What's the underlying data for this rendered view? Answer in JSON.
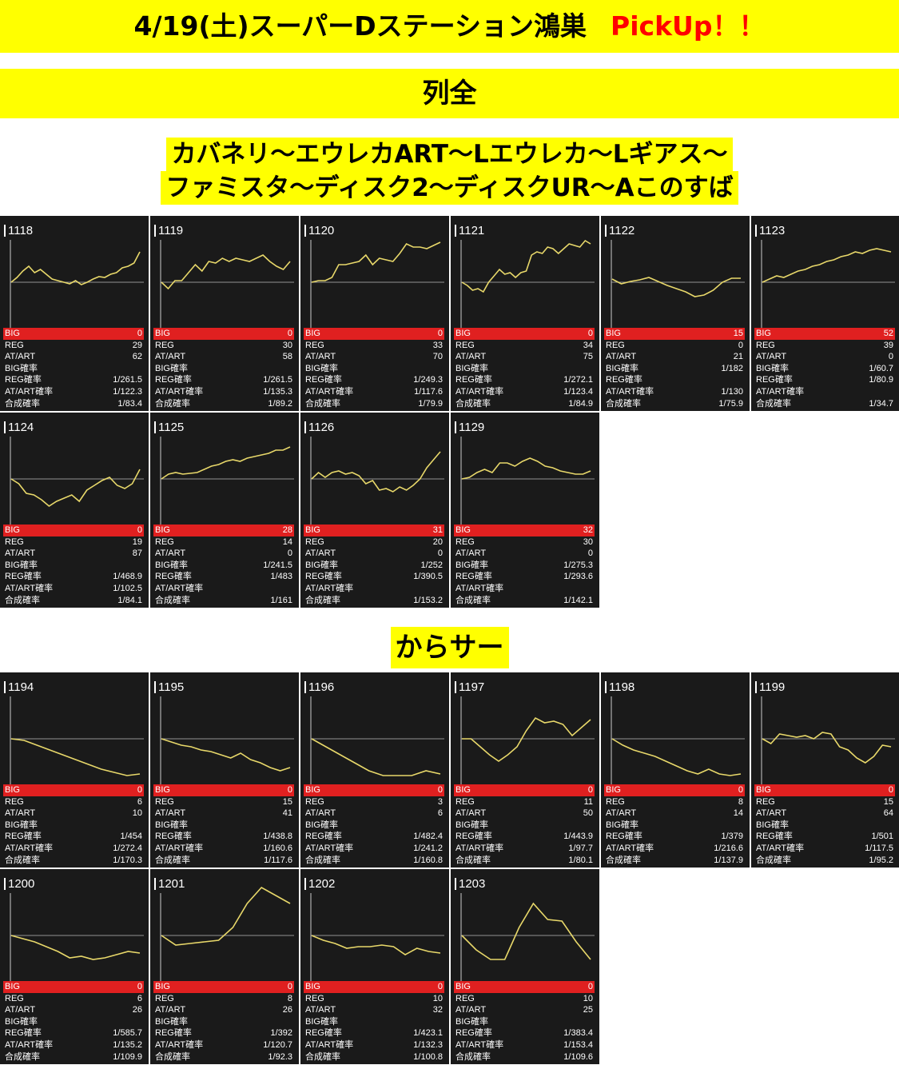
{
  "header": {
    "title": "4/19(土)スーパーDステーション鴻巣",
    "pickup": "PickUp！！"
  },
  "row_banner": "列全",
  "section1": {
    "title_line1": "カバネリ〜エウレカART〜Lエウレカ〜Lギアス〜",
    "title_line2": "ファミスタ〜ディスク2〜ディスクUR〜Aこのすば"
  },
  "section2": {
    "title": "からサー"
  },
  "stat_labels": {
    "big": "BIG",
    "reg": "REG",
    "at": "AT/ART",
    "big_rate": "BIG確率",
    "reg_rate": "REG確率",
    "at_rate": "AT/ART確率",
    "total_rate": "合成確率"
  },
  "colors": {
    "banner": "#ffff00",
    "pickup": "#ff0000",
    "card_bg": "#1a1a1a",
    "big_bar": "#e02020",
    "graph_line": "#e8d86a"
  },
  "machines": [
    {
      "num": "1118",
      "big": "0",
      "reg": "29",
      "at": "62",
      "big_rate": "",
      "reg_rate": "1/261.5",
      "at_rate": "1/122.3",
      "total_rate": "1/83.4",
      "graph": [
        0,
        6,
        14,
        20,
        12,
        16,
        10,
        4,
        2,
        0,
        -2,
        2,
        -3,
        0,
        4,
        7,
        6,
        10,
        12,
        18,
        20,
        24,
        38
      ]
    },
    {
      "num": "1119",
      "big": "0",
      "reg": "30",
      "at": "58",
      "big_rate": "",
      "reg_rate": "1/261.5",
      "at_rate": "1/135.3",
      "total_rate": "1/89.2",
      "graph": [
        0,
        -8,
        2,
        2,
        12,
        22,
        14,
        26,
        24,
        30,
        26,
        30,
        28,
        26,
        30,
        34,
        26,
        20,
        16,
        26
      ]
    },
    {
      "num": "1120",
      "big": "0",
      "reg": "33",
      "at": "70",
      "big_rate": "",
      "reg_rate": "1/249.3",
      "at_rate": "1/117.6",
      "total_rate": "1/79.9",
      "graph": [
        0,
        2,
        2,
        6,
        22,
        22,
        24,
        26,
        34,
        22,
        30,
        28,
        26,
        36,
        48,
        44,
        44,
        42,
        46,
        50
      ]
    },
    {
      "num": "1121",
      "big": "0",
      "reg": "34",
      "at": "75",
      "big_rate": "",
      "reg_rate": "1/272.1",
      "at_rate": "1/123.4",
      "total_rate": "1/84.9",
      "graph": [
        0,
        -4,
        -10,
        -8,
        -12,
        0,
        8,
        16,
        10,
        12,
        6,
        12,
        14,
        34,
        38,
        36,
        44,
        42,
        36,
        42,
        48,
        46,
        44,
        52,
        48
      ]
    },
    {
      "num": "1122",
      "big": "15",
      "reg": "0",
      "at": "21",
      "big_rate": "1/182",
      "reg_rate": "",
      "at_rate": "1/130",
      "total_rate": "1/75.9",
      "graph": [
        4,
        -2,
        1,
        3,
        6,
        1,
        -4,
        -8,
        -12,
        -18,
        -16,
        -10,
        0,
        5,
        5
      ]
    },
    {
      "num": "1123",
      "big": "52",
      "reg": "39",
      "at": "0",
      "big_rate": "1/60.7",
      "reg_rate": "1/80.9",
      "at_rate": "",
      "total_rate": "1/34.7",
      "graph": [
        0,
        4,
        8,
        6,
        10,
        14,
        16,
        20,
        22,
        26,
        28,
        32,
        34,
        38,
        36,
        40,
        42,
        40,
        38
      ]
    },
    {
      "num": "1124",
      "big": "0",
      "reg": "19",
      "at": "87",
      "big_rate": "",
      "reg_rate": "1/468.9",
      "at_rate": "1/102.5",
      "total_rate": "1/84.1",
      "graph": [
        0,
        -6,
        -18,
        -20,
        -26,
        -34,
        -28,
        -24,
        -20,
        -28,
        -14,
        -8,
        -2,
        2,
        -8,
        -12,
        -6,
        12
      ]
    },
    {
      "num": "1125",
      "big": "28",
      "reg": "14",
      "at": "0",
      "big_rate": "1/241.5",
      "reg_rate": "1/483",
      "at_rate": "",
      "total_rate": "1/161",
      "graph": [
        0,
        6,
        8,
        6,
        7,
        8,
        12,
        16,
        18,
        22,
        24,
        22,
        26,
        28,
        30,
        32,
        36,
        36,
        40
      ]
    },
    {
      "num": "1126",
      "big": "31",
      "reg": "20",
      "at": "0",
      "big_rate": "1/252",
      "reg_rate": "1/390.5",
      "at_rate": "",
      "total_rate": "1/153.2",
      "graph": [
        0,
        8,
        2,
        8,
        10,
        6,
        8,
        4,
        -6,
        -2,
        -14,
        -12,
        -16,
        -10,
        -14,
        -8,
        0,
        14,
        24,
        34
      ]
    },
    {
      "num": "1129",
      "big": "32",
      "reg": "30",
      "at": "0",
      "big_rate": "1/275.3",
      "reg_rate": "1/293.6",
      "at_rate": "",
      "total_rate": "1/142.1",
      "graph": [
        0,
        2,
        8,
        12,
        8,
        20,
        20,
        16,
        22,
        26,
        22,
        16,
        14,
        10,
        8,
        6,
        6,
        10
      ]
    },
    {
      "num": "1194",
      "big": "0",
      "reg": "6",
      "at": "10",
      "big_rate": "",
      "reg_rate": "1/454",
      "at_rate": "1/272.4",
      "total_rate": "1/170.3",
      "graph": [
        0,
        -2,
        -8,
        -14,
        -20,
        -26,
        -32,
        -38,
        -42,
        -46,
        -44
      ]
    },
    {
      "num": "1195",
      "big": "0",
      "reg": "15",
      "at": "41",
      "big_rate": "",
      "reg_rate": "1/438.8",
      "at_rate": "1/160.6",
      "total_rate": "1/117.6",
      "graph": [
        0,
        -4,
        -8,
        -10,
        -14,
        -16,
        -20,
        -24,
        -18,
        -26,
        -30,
        -36,
        -40,
        -36
      ]
    },
    {
      "num": "1196",
      "big": "0",
      "reg": "3",
      "at": "6",
      "big_rate": "",
      "reg_rate": "1/482.4",
      "at_rate": "1/241.2",
      "total_rate": "1/160.8",
      "graph": [
        0,
        -10,
        -20,
        -30,
        -40,
        -46,
        -46,
        -46,
        -40,
        -44
      ]
    },
    {
      "num": "1197",
      "big": "0",
      "reg": "11",
      "at": "50",
      "big_rate": "",
      "reg_rate": "1/443.9",
      "at_rate": "1/97.7",
      "total_rate": "1/80.1",
      "graph": [
        0,
        0,
        -10,
        -20,
        -28,
        -20,
        -10,
        10,
        26,
        20,
        22,
        18,
        4,
        14,
        24
      ]
    },
    {
      "num": "1198",
      "big": "0",
      "reg": "8",
      "at": "14",
      "big_rate": "",
      "reg_rate": "1/379",
      "at_rate": "1/216.6",
      "total_rate": "1/137.9",
      "graph": [
        0,
        -8,
        -14,
        -18,
        -22,
        -28,
        -34,
        -40,
        -44,
        -38,
        -44,
        -46,
        -44
      ]
    },
    {
      "num": "1199",
      "big": "0",
      "reg": "15",
      "at": "64",
      "big_rate": "",
      "reg_rate": "1/501",
      "at_rate": "1/117.5",
      "total_rate": "1/95.2",
      "graph": [
        0,
        -6,
        6,
        4,
        2,
        4,
        0,
        8,
        6,
        -10,
        -14,
        -24,
        -30,
        -22,
        -8,
        -10
      ]
    },
    {
      "num": "1200",
      "big": "0",
      "reg": "6",
      "at": "26",
      "big_rate": "",
      "reg_rate": "1/585.7",
      "at_rate": "1/135.2",
      "total_rate": "1/109.9",
      "graph": [
        0,
        -4,
        -8,
        -14,
        -20,
        -28,
        -26,
        -30,
        -28,
        -24,
        -20,
        -22
      ]
    },
    {
      "num": "1201",
      "big": "0",
      "reg": "8",
      "at": "26",
      "big_rate": "",
      "reg_rate": "1/392",
      "at_rate": "1/120.7",
      "total_rate": "1/92.3",
      "graph": [
        0,
        -12,
        -10,
        -8,
        -6,
        10,
        40,
        60,
        50,
        40
      ]
    },
    {
      "num": "1202",
      "big": "0",
      "reg": "10",
      "at": "32",
      "big_rate": "",
      "reg_rate": "1/423.1",
      "at_rate": "1/132.3",
      "total_rate": "1/100.8",
      "graph": [
        0,
        -6,
        -10,
        -16,
        -14,
        -14,
        -12,
        -14,
        -24,
        -16,
        -20,
        -22
      ]
    },
    {
      "num": "1203",
      "big": "0",
      "reg": "10",
      "at": "25",
      "big_rate": "",
      "reg_rate": "1/383.4",
      "at_rate": "1/153.4",
      "total_rate": "1/109.6",
      "graph": [
        0,
        -18,
        -30,
        -30,
        10,
        40,
        20,
        18,
        -8,
        -30
      ]
    }
  ]
}
